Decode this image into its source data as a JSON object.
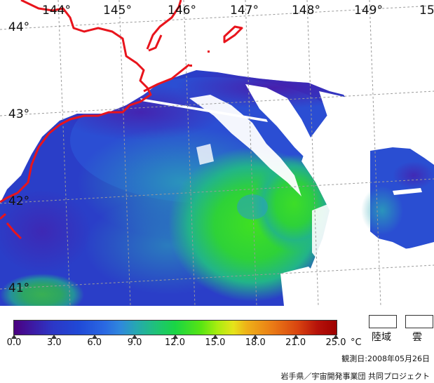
{
  "map": {
    "lat_labels": [
      "44°",
      "43°",
      "42°",
      "41°"
    ],
    "lon_labels": [
      "144°",
      "145°",
      "146°",
      "147°",
      "148°",
      "149°",
      "15"
    ],
    "colors": {
      "coastline": "#e8141c",
      "graticule": "#9a9a9a",
      "deep_blue": "#2a3ec8",
      "purple": "#4a1aa8",
      "green": "#2fd23c"
    }
  },
  "colorbar": {
    "ticks": [
      "0.0",
      "3.0",
      "6.0",
      "9.0",
      "12.0",
      "15.0",
      "18.0",
      "21.0",
      "25.0"
    ],
    "unit": "°C"
  },
  "legend": {
    "land_label": "陸域",
    "cloud_label": "雲"
  },
  "footer": {
    "date": "観測日:2008年05月26日",
    "credit": "岩手県／宇宙開発事業団  共同プロジェクト"
  }
}
